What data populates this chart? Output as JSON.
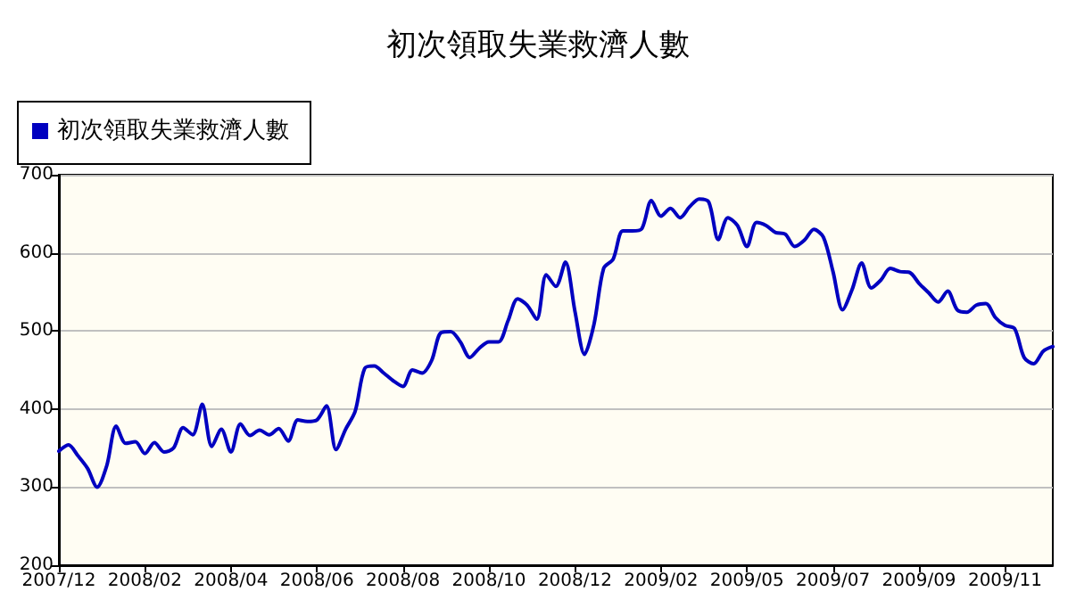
{
  "chart_data": {
    "type": "line",
    "title": "初次領取失業救濟人數",
    "categories": [
      "2007/12",
      null,
      null,
      null,
      null,
      null,
      null,
      null,
      null,
      "2008/02",
      null,
      null,
      null,
      null,
      null,
      null,
      null,
      null,
      "2008/04",
      null,
      null,
      null,
      null,
      null,
      null,
      null,
      null,
      "2008/06",
      null,
      null,
      null,
      null,
      null,
      null,
      null,
      null,
      "2008/08",
      null,
      null,
      null,
      null,
      null,
      null,
      null,
      null,
      "2008/10",
      null,
      null,
      null,
      null,
      null,
      null,
      null,
      null,
      "2008/12",
      null,
      null,
      null,
      null,
      null,
      null,
      null,
      null,
      "2009/02",
      null,
      null,
      null,
      null,
      null,
      null,
      null,
      null,
      "2009/05",
      null,
      null,
      null,
      null,
      null,
      null,
      null,
      null,
      "2009/07",
      null,
      null,
      null,
      null,
      null,
      null,
      null,
      null,
      "2009/09",
      null,
      null,
      null,
      null,
      null,
      null,
      null,
      null,
      "2009/11",
      null,
      null,
      null,
      null,
      null
    ],
    "series": [
      {
        "name": "初次領取失業救濟人數",
        "color": "#0000c0",
        "values": [
          346,
          354,
          340,
          324,
          300,
          327,
          378,
          356,
          358,
          343,
          357,
          345,
          350,
          376,
          367,
          406,
          352,
          374,
          345,
          381,
          366,
          373,
          367,
          375,
          359,
          386,
          384,
          386,
          404,
          348,
          374,
          397,
          452,
          455,
          446,
          436,
          429,
          450,
          446,
          462,
          498,
          499,
          486,
          466,
          478,
          486,
          486,
          513,
          541,
          533,
          515,
          572,
          557,
          588,
          525,
          470,
          509,
          580,
          592,
          628,
          628,
          631,
          667,
          647,
          657,
          645,
          659,
          669,
          665,
          617,
          645,
          635,
          608,
          639,
          635,
          626,
          624,
          608,
          616,
          630,
          620,
          576,
          527,
          553,
          587,
          555,
          565,
          580,
          576,
          575,
          561,
          549,
          537,
          551,
          527,
          524,
          533,
          535,
          517,
          507,
          503,
          466,
          458,
          474,
          480
        ]
      }
    ],
    "ylim": [
      200,
      700
    ],
    "yticks": [
      200,
      300,
      400,
      500,
      600,
      700
    ],
    "grid": "y",
    "legend": "top left",
    "marker": "none",
    "line_style": "solid"
  }
}
